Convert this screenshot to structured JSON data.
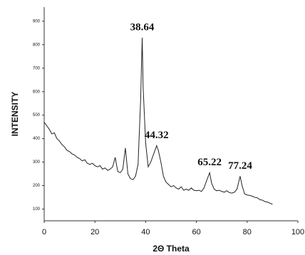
{
  "chart_data": {
    "type": "line",
    "x_label": "2Θ Theta",
    "y_label": "INTENSITY",
    "x": [
      0,
      1,
      2,
      3,
      4,
      5,
      6,
      7,
      8,
      9,
      10,
      11,
      12,
      13,
      14,
      15,
      16,
      17,
      18,
      19,
      20,
      21,
      22,
      23,
      24,
      25,
      26,
      27,
      28,
      29,
      30,
      31,
      32,
      33,
      34,
      35,
      36,
      37,
      38,
      38.64,
      39,
      40,
      41,
      42,
      43,
      44,
      44.32,
      45,
      46,
      47,
      48,
      49,
      50,
      51,
      52,
      53,
      54,
      55,
      56,
      57,
      58,
      59,
      60,
      61,
      62,
      63,
      64,
      65.22,
      66,
      67,
      68,
      69,
      70,
      71,
      72,
      73,
      74,
      75,
      76,
      77.24,
      78,
      79,
      80,
      81,
      82,
      83,
      84,
      85,
      86,
      87,
      88,
      89,
      90
    ],
    "series": [
      {
        "color": "#222222",
        "values": [
          470,
          455,
          440,
          420,
          425,
          400,
          390,
          375,
          365,
          350,
          345,
          335,
          330,
          320,
          315,
          305,
          310,
          295,
          290,
          295,
          285,
          280,
          285,
          270,
          275,
          265,
          270,
          280,
          320,
          260,
          255,
          270,
          360,
          250,
          230,
          225,
          240,
          290,
          560,
          830,
          620,
          380,
          280,
          300,
          330,
          360,
          370,
          350,
          300,
          240,
          215,
          205,
          195,
          200,
          190,
          185,
          195,
          180,
          185,
          180,
          190,
          180,
          178,
          180,
          175,
          190,
          220,
          255,
          210,
          185,
          178,
          180,
          175,
          172,
          178,
          170,
          168,
          172,
          185,
          240,
          200,
          165,
          160,
          158,
          155,
          150,
          148,
          140,
          138,
          132,
          130,
          125,
          120
        ]
      }
    ],
    "annotations": [
      {
        "text": "38.64",
        "x": 38.64
      },
      {
        "text": "44.32",
        "x": 44.32
      },
      {
        "text": "65.22",
        "x": 65.22
      },
      {
        "text": "77.24",
        "x": 77.24
      }
    ],
    "xlim": [
      0,
      100
    ],
    "ylim": [
      50,
      960
    ],
    "xticks": [
      0,
      20,
      40,
      60,
      80,
      100
    ],
    "yticks": [
      100,
      200,
      300,
      400,
      500,
      600,
      700,
      800,
      900
    ]
  }
}
